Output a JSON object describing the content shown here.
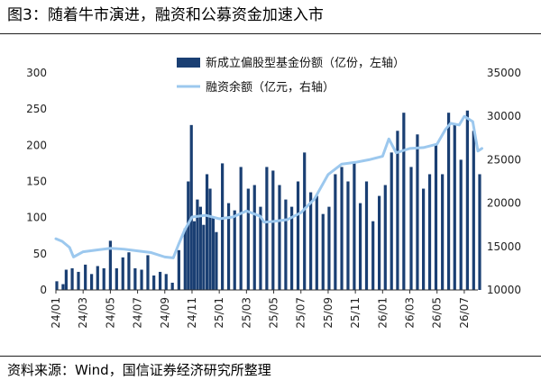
{
  "title": "图3：随着牛市演进，融资和公募资金加速入市",
  "source": "资料来源：Wind，国信证券经济研究所整理",
  "chart_data": {
    "type": "bar+line",
    "legend_placement": "top-center",
    "grid": false,
    "left_axis": {
      "range": [
        0,
        300
      ],
      "ticks": [
        0,
        50,
        100,
        150,
        200,
        250,
        300
      ]
    },
    "right_axis": {
      "range": [
        10000,
        35000
      ],
      "ticks": [
        10000,
        15000,
        20000,
        25000,
        30000,
        35000
      ]
    },
    "x_axis": {
      "range": [
        "2024-01",
        "2026-08"
      ],
      "tick_labels": [
        "24/01",
        "24/03",
        "24/05",
        "24/07",
        "24/09",
        "24/11",
        "25/01",
        "25/03",
        "25/05",
        "25/07",
        "25/09",
        "25/11",
        "26/01",
        "26/03",
        "26/05",
        "26/07"
      ]
    },
    "series": [
      {
        "name": "新成立偏股型基金份额（亿份，左轴）",
        "type": "bar",
        "axis": "left",
        "color": "#1a3f73",
        "x": [
          "2024-01-03",
          "2024-01-17",
          "2024-01-24",
          "2024-02-07",
          "2024-02-21",
          "2024-03-06",
          "2024-03-20",
          "2024-04-03",
          "2024-04-17",
          "2024-05-01",
          "2024-05-15",
          "2024-05-29",
          "2024-06-12",
          "2024-06-26",
          "2024-07-10",
          "2024-07-24",
          "2024-08-07",
          "2024-08-21",
          "2024-09-04",
          "2024-09-18",
          "2024-10-02",
          "2024-10-16",
          "2024-10-23",
          "2024-10-30",
          "2024-11-06",
          "2024-11-13",
          "2024-11-20",
          "2024-11-27",
          "2024-12-04",
          "2024-12-11",
          "2024-12-18",
          "2024-12-25",
          "2025-01-08",
          "2025-01-22",
          "2025-02-05",
          "2025-02-19",
          "2025-03-05",
          "2025-03-19",
          "2025-04-02",
          "2025-04-16",
          "2025-04-30",
          "2025-05-14",
          "2025-05-28",
          "2025-06-11",
          "2025-06-25",
          "2025-07-09",
          "2025-07-23",
          "2025-08-06",
          "2025-08-20",
          "2025-09-03",
          "2025-09-17",
          "2025-10-01",
          "2025-10-15",
          "2025-10-29",
          "2025-11-12",
          "2025-11-26",
          "2025-12-10",
          "2025-12-24",
          "2026-01-07",
          "2026-01-21",
          "2026-02-04",
          "2026-02-18",
          "2026-03-04",
          "2026-03-18",
          "2026-04-01",
          "2026-04-15",
          "2026-04-29",
          "2026-05-13",
          "2026-05-27",
          "2026-06-10",
          "2026-06-24",
          "2026-07-08",
          "2026-07-22",
          "2026-08-05"
        ],
        "values": [
          12,
          8,
          28,
          30,
          25,
          35,
          22,
          33,
          30,
          68,
          30,
          45,
          52,
          30,
          28,
          48,
          20,
          25,
          22,
          10,
          55,
          85,
          150,
          228,
          95,
          125,
          115,
          90,
          160,
          140,
          100,
          80,
          175,
          120,
          110,
          170,
          140,
          145,
          115,
          170,
          165,
          145,
          125,
          115,
          150,
          190,
          135,
          130,
          105,
          115,
          160,
          170,
          150,
          175,
          120,
          150,
          95,
          130,
          145,
          190,
          220,
          245,
          170,
          215,
          140,
          160,
          200,
          160,
          245,
          230,
          180,
          248,
          220,
          160
        ]
      },
      {
        "name": "融资余额（亿元，右轴）",
        "type": "line",
        "axis": "right",
        "color": "#9cc8ee",
        "x": [
          "2024-01-01",
          "2024-01-15",
          "2024-02-01",
          "2024-02-10",
          "2024-03-01",
          "2024-04-01",
          "2024-05-01",
          "2024-06-01",
          "2024-07-01",
          "2024-08-01",
          "2024-09-01",
          "2024-09-20",
          "2024-10-01",
          "2024-10-15",
          "2024-11-01",
          "2024-12-01",
          "2025-01-01",
          "2025-02-01",
          "2025-03-01",
          "2025-04-01",
          "2025-04-10",
          "2025-05-01",
          "2025-06-01",
          "2025-07-01",
          "2025-08-01",
          "2025-09-01",
          "2025-10-01",
          "2025-11-01",
          "2025-12-01",
          "2026-01-01",
          "2026-01-15",
          "2026-02-01",
          "2026-03-01",
          "2026-04-01",
          "2026-05-01",
          "2026-05-20",
          "2026-06-01",
          "2026-06-20",
          "2026-07-01",
          "2026-07-20",
          "2026-08-01",
          "2026-08-10"
        ],
        "values": [
          15900,
          15600,
          14900,
          13800,
          14400,
          14600,
          14800,
          14700,
          14500,
          14300,
          13800,
          13700,
          15200,
          16900,
          18400,
          18600,
          18200,
          18400,
          19100,
          18500,
          17800,
          17900,
          18100,
          18900,
          20500,
          23300,
          24500,
          24700,
          25000,
          25400,
          27400,
          25800,
          26300,
          26400,
          26800,
          28500,
          29200,
          29000,
          30000,
          29400,
          26000,
          26300
        ]
      }
    ]
  }
}
